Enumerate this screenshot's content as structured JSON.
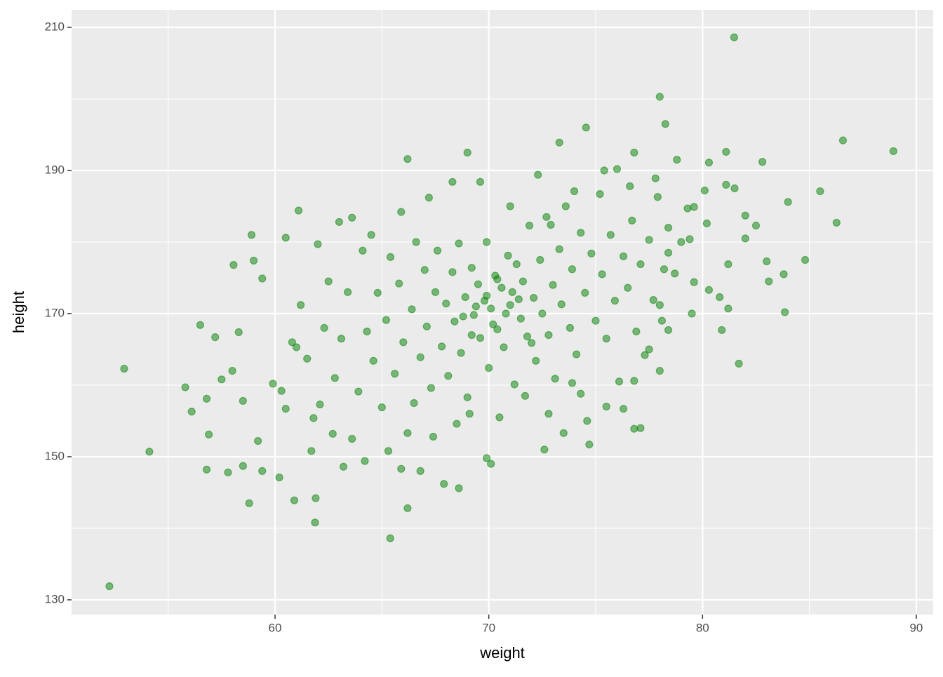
{
  "chart_data": {
    "type": "scatter",
    "x_label": "weight",
    "y_label": "height",
    "color": "#008000",
    "opacity": 0.5,
    "xlim": [
      50.48,
      90.79
    ],
    "ylim": [
      127.94,
      212.45
    ],
    "xticks": [
      60,
      70,
      80,
      90
    ],
    "yticks": [
      130,
      150,
      170,
      190,
      210
    ],
    "xminor": [
      55,
      65,
      75,
      85
    ],
    "yminor": [
      140,
      160,
      180,
      200
    ],
    "grid": true,
    "x": [
      52.25,
      52.94,
      54.12,
      81.48,
      78.0,
      86.57,
      88.93,
      78.26,
      74.55,
      65.39,
      61.87,
      66.2,
      58.79,
      84.8,
      83.85,
      86.27,
      81.7,
      85.5,
      84.0,
      82.8,
      81.1,
      80.3,
      78.8,
      76.8,
      73.3,
      69.0,
      66.2,
      58.06,
      58.9,
      60.5,
      61.1,
      63.6,
      55.8,
      56.1,
      56.5,
      57.2,
      56.8,
      56.8,
      57.8,
      58.5,
      59.4,
      60.2,
      60.9,
      61.9,
      66.8,
      67.9,
      68.6,
      69.9,
      70.1,
      65.9,
      72.6,
      76.8,
      77.1,
      75.5,
      76.3,
      74.7,
      81.2,
      80.8,
      81.2,
      80.9,
      80.3,
      82.0,
      83.0,
      83.1,
      83.8,
      82.5,
      82.0,
      81.5,
      81.1,
      80.1,
      79.6,
      80.2,
      79.4,
      78.4,
      78.2,
      78.0,
      78.4,
      59.2,
      59.9,
      60.3,
      60.5,
      61.0,
      61.2,
      61.5,
      61.8,
      62.1,
      62.3,
      62.5,
      62.8,
      63.1,
      63.4,
      63.6,
      63.9,
      64.1,
      64.3,
      64.6,
      64.8,
      65.0,
      65.2,
      65.4,
      65.6,
      65.8,
      66.0,
      66.2,
      66.4,
      66.6,
      66.8,
      67.0,
      67.1,
      67.3,
      67.5,
      67.6,
      67.8,
      68.0,
      68.1,
      68.3,
      68.4,
      68.6,
      68.7,
      68.9,
      69.0,
      69.2,
      69.3,
      69.5,
      69.6,
      69.8,
      69.9,
      70.0,
      70.1,
      70.3,
      70.4,
      70.6,
      70.7,
      70.9,
      71.0,
      71.2,
      71.3,
      71.5,
      71.6,
      71.8,
      71.9,
      72.1,
      72.2,
      72.4,
      72.5,
      72.7,
      72.8,
      73.0,
      73.1,
      73.3,
      73.4,
      73.6,
      73.8,
      73.9,
      74.1,
      74.3,
      74.5,
      74.6,
      74.8,
      75.0,
      75.2,
      75.3,
      75.5,
      75.7,
      75.9,
      76.1,
      76.3,
      76.5,
      76.7,
      76.9,
      77.1,
      77.3,
      77.5,
      77.7,
      77.9,
      78.1,
      78.4,
      78.7,
      79.0,
      79.3,
      79.6,
      58.3,
      58.5,
      58.0,
      57.5,
      56.9,
      59.0,
      59.4,
      60.8,
      62.0,
      63.0,
      64.5,
      65.9,
      67.2,
      68.3,
      69.6,
      71.0,
      72.3,
      72.9,
      74.0,
      75.4,
      76.0,
      76.6,
      77.8,
      70.5,
      71.7,
      72.8,
      73.5,
      74.3,
      68.5,
      69.1,
      66.5,
      67.4,
      64.2,
      63.2,
      61.7,
      62.7,
      65.3,
      73.9,
      76.8,
      78.0,
      77.5,
      79.5,
      72.0,
      70.2,
      69.4,
      71.1,
      70.8,
      69.9,
      68.8,
      71.4,
      70.4,
      69.2
    ],
    "values": [
      131.9,
      162.3,
      150.7,
      208.6,
      200.3,
      194.2,
      192.7,
      196.5,
      196.0,
      138.6,
      140.8,
      142.8,
      143.5,
      177.5,
      170.2,
      182.7,
      163.0,
      187.1,
      185.6,
      191.2,
      192.6,
      191.1,
      191.5,
      192.5,
      193.9,
      192.5,
      191.6,
      176.8,
      181.0,
      180.6,
      184.4,
      183.4,
      159.7,
      156.3,
      168.4,
      166.7,
      158.1,
      148.2,
      147.8,
      148.7,
      148.0,
      147.1,
      143.9,
      144.2,
      148.0,
      146.2,
      145.6,
      149.8,
      149.0,
      148.3,
      151.0,
      153.9,
      154.0,
      157.0,
      156.7,
      151.7,
      176.9,
      172.3,
      170.7,
      167.7,
      173.3,
      180.5,
      177.3,
      174.5,
      175.5,
      182.3,
      183.7,
      187.5,
      188.0,
      187.2,
      184.9,
      182.6,
      180.4,
      178.5,
      176.2,
      171.2,
      167.7,
      152.2,
      160.2,
      159.2,
      156.7,
      165.3,
      171.2,
      163.7,
      155.4,
      157.3,
      168.0,
      174.5,
      161.0,
      166.5,
      173.0,
      152.5,
      159.1,
      178.8,
      167.5,
      163.4,
      172.9,
      156.9,
      169.1,
      177.9,
      161.6,
      174.2,
      166.0,
      153.3,
      170.6,
      180.0,
      163.9,
      176.1,
      168.2,
      159.6,
      173.0,
      178.8,
      165.4,
      171.4,
      161.3,
      175.8,
      168.9,
      179.8,
      164.5,
      172.3,
      158.3,
      176.4,
      169.8,
      174.1,
      166.6,
      171.8,
      180.0,
      162.4,
      170.7,
      175.3,
      167.8,
      173.6,
      165.3,
      178.1,
      171.2,
      160.1,
      176.9,
      169.3,
      174.5,
      166.8,
      182.3,
      172.2,
      163.4,
      177.5,
      170.0,
      183.5,
      167.0,
      174.0,
      160.9,
      179.0,
      171.3,
      185.0,
      168.0,
      176.2,
      164.3,
      181.3,
      172.9,
      155.0,
      178.4,
      169.0,
      186.7,
      175.5,
      166.5,
      181.0,
      171.8,
      160.5,
      178.0,
      173.6,
      183.0,
      167.5,
      176.9,
      164.2,
      180.3,
      171.9,
      186.3,
      169.0,
      182.0,
      175.6,
      180.0,
      184.7,
      174.4,
      167.4,
      157.8,
      162.0,
      160.8,
      153.1,
      177.4,
      174.9,
      166.0,
      179.7,
      182.8,
      181.0,
      184.2,
      186.2,
      188.4,
      188.4,
      185.0,
      189.4,
      182.4,
      187.1,
      190.0,
      190.2,
      187.8,
      188.9,
      155.5,
      158.5,
      156.0,
      153.3,
      158.8,
      154.6,
      156.0,
      157.5,
      152.8,
      149.4,
      148.6,
      150.8,
      153.2,
      150.8,
      160.3,
      160.6,
      162.0,
      165.0,
      170.0,
      165.9,
      168.5,
      171.0,
      173.0,
      170.0,
      172.5,
      169.6,
      172.0,
      174.8,
      167.0
    ]
  }
}
